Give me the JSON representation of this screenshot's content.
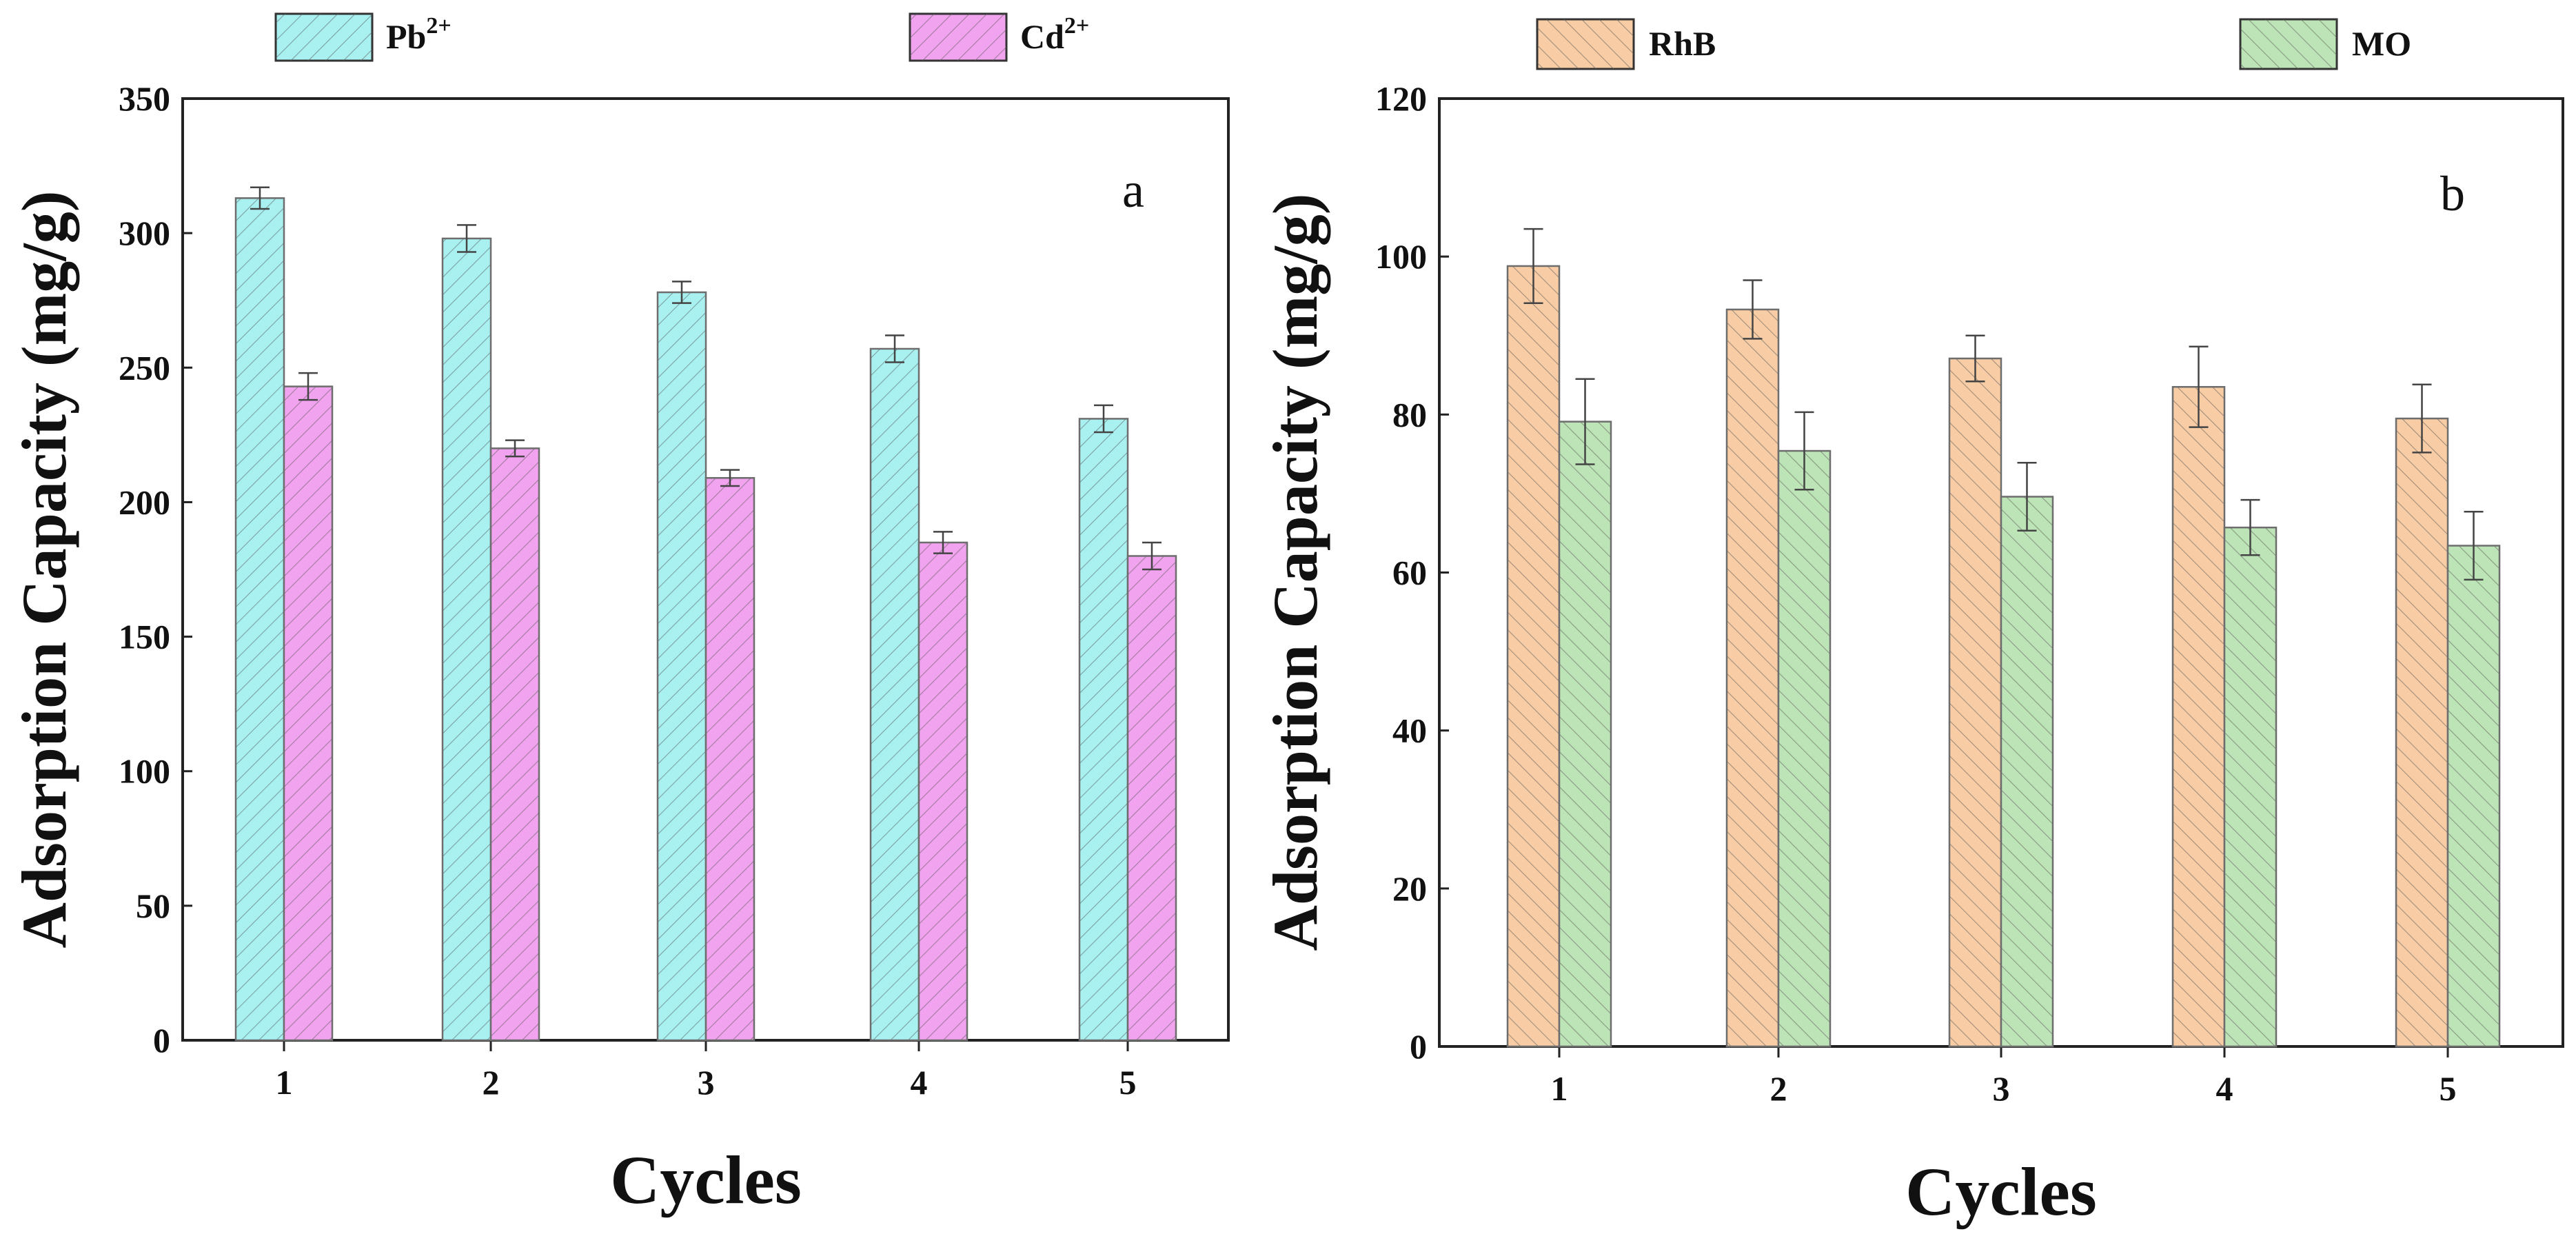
{
  "chart_data": [
    {
      "type": "bar",
      "panel_label": "a",
      "xlabel": "Cycles",
      "ylabel": "Adsorption Capacity (mg/g)",
      "categories": [
        "1",
        "2",
        "3",
        "4",
        "5"
      ],
      "ylim": [
        0,
        350
      ],
      "yticks": [
        0,
        50,
        100,
        150,
        200,
        250,
        300,
        350
      ],
      "series": [
        {
          "name": "Pb",
          "superscript": "2+",
          "values": [
            313,
            298,
            278,
            257,
            231
          ],
          "errors": [
            4,
            5,
            4,
            5,
            5
          ],
          "color": "#a9f1f1"
        },
        {
          "name": "Cd",
          "superscript": "2+",
          "values": [
            243,
            220,
            209,
            185,
            180
          ],
          "errors": [
            5,
            3,
            3,
            4,
            5
          ],
          "color": "#f2a3ef"
        }
      ]
    },
    {
      "type": "bar",
      "panel_label": "b",
      "xlabel": "Cycles",
      "ylabel": "Adsorption Capacity (mg/g)",
      "categories": [
        "1",
        "2",
        "3",
        "4",
        "5"
      ],
      "ylim": [
        0,
        120
      ],
      "yticks": [
        0,
        20,
        40,
        60,
        80,
        100,
        120
      ],
      "series": [
        {
          "name": "RhB",
          "superscript": "",
          "values": [
            98.8,
            93.3,
            87.1,
            83.5,
            79.5
          ],
          "errors": [
            4.7,
            3.7,
            2.9,
            5.1,
            4.3
          ],
          "color": "#f8cca4"
        },
        {
          "name": "MO",
          "superscript": "",
          "values": [
            79.1,
            75.4,
            69.6,
            65.7,
            63.4
          ],
          "errors": [
            5.4,
            4.9,
            4.3,
            3.5,
            4.3
          ],
          "color": "#bde4b6"
        }
      ]
    }
  ]
}
